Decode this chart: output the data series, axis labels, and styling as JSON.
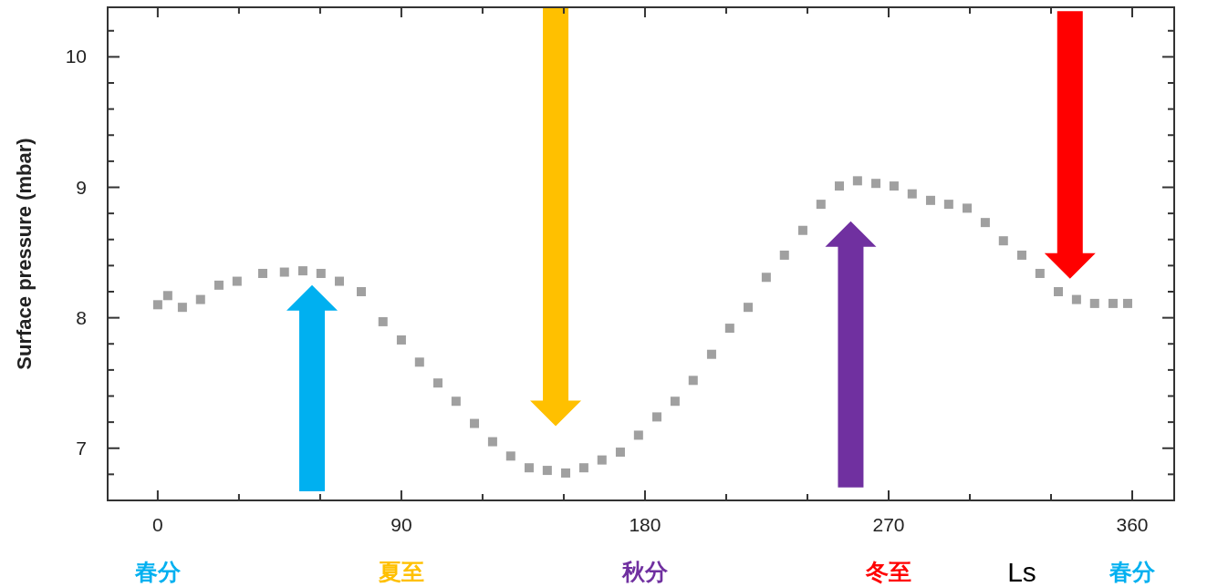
{
  "chart_data": {
    "type": "scatter",
    "ylabel": "Surface pressure (mbar)",
    "xlabel": "Ls",
    "marker": "square",
    "grid": false,
    "xlim": [
      -18.5,
      375.5
    ],
    "ylim": [
      6.6,
      10.38
    ],
    "xticks": [
      0,
      {
        "value": 30,
        "label": null
      },
      {
        "value": 60,
        "label": null
      },
      90,
      {
        "value": 120,
        "label": null
      },
      {
        "value": 150,
        "label": null
      },
      180,
      {
        "value": 210,
        "label": null
      },
      {
        "value": 240,
        "label": null
      },
      270,
      {
        "value": 300,
        "label": null
      },
      {
        "value": 330,
        "label": null
      },
      360
    ],
    "yticks": [
      {
        "value": 6.8,
        "label": null
      },
      7,
      {
        "value": 7.2,
        "label": null
      },
      {
        "value": 7.4,
        "label": null
      },
      {
        "value": 7.6,
        "label": null
      },
      {
        "value": 7.8,
        "label": null
      },
      8,
      {
        "value": 8.2,
        "label": null
      },
      {
        "value": 8.4,
        "label": null
      },
      {
        "value": 8.6,
        "label": null
      },
      {
        "value": 8.8,
        "label": null
      },
      9,
      {
        "value": 9.2,
        "label": null
      },
      {
        "value": 9.4,
        "label": null
      },
      {
        "value": 9.6,
        "label": null
      },
      {
        "value": 9.8,
        "label": null
      },
      10,
      {
        "value": 10.2,
        "label": null
      }
    ],
    "series": [
      {
        "color": "#a0a0a0",
        "x": [
          0,
          3.7,
          9.1,
          15.8,
          22.6,
          29.3,
          38.8,
          46.8,
          53.6,
          60.3,
          67.1,
          75.2,
          83.2,
          90,
          96.7,
          103.5,
          110.2,
          117,
          123.7,
          130.4,
          137.2,
          143.9,
          150.7,
          157.4,
          164.1,
          170.9,
          177.6,
          184.4,
          191.1,
          197.8,
          204.6,
          211.3,
          218.1,
          224.8,
          231.5,
          238.3,
          245,
          251.8,
          258.5,
          265.3,
          272,
          278.7,
          285.5,
          292.2,
          299,
          305.7,
          312.4,
          319.2,
          325.9,
          332.7,
          339.4,
          346.1,
          352.9,
          358.3
        ],
        "values": [
          8.1,
          8.17,
          8.08,
          8.14,
          8.25,
          8.28,
          8.34,
          8.35,
          8.36,
          8.34,
          8.28,
          8.2,
          7.97,
          7.83,
          7.66,
          7.5,
          7.36,
          7.19,
          7.05,
          6.94,
          6.85,
          6.83,
          6.81,
          6.85,
          6.91,
          6.97,
          7.1,
          7.24,
          7.36,
          7.52,
          7.72,
          7.92,
          8.08,
          8.31,
          8.48,
          8.67,
          8.87,
          9.01,
          9.05,
          9.03,
          9.01,
          8.95,
          8.9,
          8.87,
          8.84,
          8.73,
          8.59,
          8.48,
          8.34,
          8.2,
          8.14,
          8.11,
          8.11,
          8.11
        ]
      }
    ],
    "annotations": [
      "春分",
      "夏至",
      "秋分",
      "冬至",
      "春分"
    ]
  }
}
